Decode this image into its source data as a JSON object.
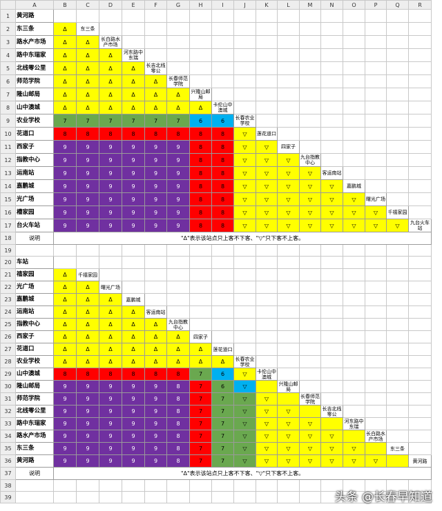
{
  "columns": [
    "A",
    "B",
    "C",
    "D",
    "E",
    "F",
    "G",
    "H",
    "I",
    "J",
    "K",
    "L",
    "M",
    "N",
    "O",
    "P",
    "Q",
    "R"
  ],
  "colors": {
    "yellow": "#ffff00",
    "green": "#6aa84f",
    "cyan": "#00b0f0",
    "red": "#ff0000",
    "purple": "#7030a0",
    "white": "#ffffff"
  },
  "symbols": {
    "up": "Δ",
    "down": "▽"
  },
  "section1": {
    "header": "黄河路",
    "stations": [
      "东三条",
      "路水产市场",
      "路中东瑞家",
      "北线零公里",
      "师范学院",
      "隆山邮局",
      "山中澳城",
      "农业学校",
      "花道口",
      "西家子",
      "指教中心",
      "运南站",
      "嘉鹏城",
      "光广场",
      "槽家园",
      "台火车站"
    ],
    "labels": [
      "东三条",
      "长白路水产市场",
      "河东路中东瑞",
      "长吉北线零公",
      "长春师范学院",
      "兴隆山邮局",
      "卡伦山中澳城",
      "长春农业学校",
      "莲花道口",
      "四家子",
      "九台指教中心",
      "客运南站",
      "嘉鹏城",
      "曙光广场",
      "千禧家园",
      "九台火车站"
    ],
    "cols": [
      0,
      1,
      2,
      3,
      4,
      5,
      6,
      7,
      8,
      9,
      10,
      11,
      12,
      13,
      14,
      15
    ],
    "palette": [
      "Y",
      "YY",
      "YYY",
      "YYYY",
      "YYYYY",
      "YYYYYY",
      "YYYYYYY",
      "GGGGGGCC",
      "RRRRRRRRY",
      "PPPPPPRRYY",
      "PPPPPPRRYYY",
      "PPPPPPRRYYYY",
      "PPPPPPRRYYYYY",
      "PPPPPPRRYYYYYY",
      "PPPPPPRRYYYYYYY",
      "PPPPPPRRYYYYYYYY"
    ],
    "values": [
      "Δ",
      "ΔΔ",
      "ΔΔΔ",
      "ΔΔΔΔ",
      "ΔΔΔΔΔ",
      "ΔΔΔΔΔΔ",
      "ΔΔΔΔΔΔΔ",
      "77777766",
      "88888888▽",
      "99999988▽▽",
      "99999988▽▽▽",
      "99999988▽▽▽▽",
      "99999988▽▽▽▽▽",
      "99999988▽▽▽▽▽▽",
      "99999988▽▽▽▽▽▽▽",
      "99999988▽▽▽▽▽▽▽▽"
    ]
  },
  "section2": {
    "header": "车站",
    "stations": [
      "禧家园",
      "光广场",
      "嘉鹏城",
      "运南站",
      "指教中心",
      "西家子",
      "花道口",
      "农业学校",
      "山中澳城",
      "隆山邮局",
      "师范学院",
      "北线零公里",
      "路中东瑞家",
      "路水产市场",
      "东三条",
      "黄河路"
    ],
    "labels": [
      "千禧家园",
      "曙光广场",
      "嘉鹏城",
      "客运南站",
      "九台指教中心",
      "四家子",
      "莲花道口",
      "长春农业学校",
      "卡伦山中澳城",
      "兴隆山邮局",
      "长春师范学院",
      "长吉北线零公",
      "河东路中东瑞",
      "长白路水产市场",
      "东三条",
      "黄河路"
    ],
    "palette": [
      "Y",
      "YY",
      "YYY",
      "YYYY",
      "YYYYY",
      "YYYYYY",
      "YYYYYYY",
      "YYYYYYYY",
      "RRRRRRGCY",
      "PPPPPPRGCY",
      "PPPPPPRGGYY",
      "PPPPPPRGGYYY",
      "PPPPPPRGGYYYY",
      "PPPPPPRGGYYYYY",
      "PPPPPPRGGYYYYYY",
      "PPPPPPRGGYYYYYYY"
    ],
    "values": [
      "Δ",
      "ΔΔ",
      "ΔΔΔ",
      "ΔΔΔΔ",
      "ΔΔΔΔΔ",
      "ΔΔΔΔΔΔ",
      "ΔΔΔΔΔΔΔ",
      "ΔΔΔΔΔΔΔΔ",
      "88888876▽",
      "99999876▽",
      "99999877▽▽",
      "99999877▽▽▽",
      "99999877▽▽▽▽",
      "99999877▽▽▽▽▽",
      "99999877▽▽▽▽▽▽",
      "99999877▽▽▽▽▽▽▽"
    ]
  },
  "note_label": "说明",
  "note_text": "\"Δ\"表示该站点只上客不下客、\"▽\"只下客不上客。",
  "watermark": "头条 @长春早知道"
}
